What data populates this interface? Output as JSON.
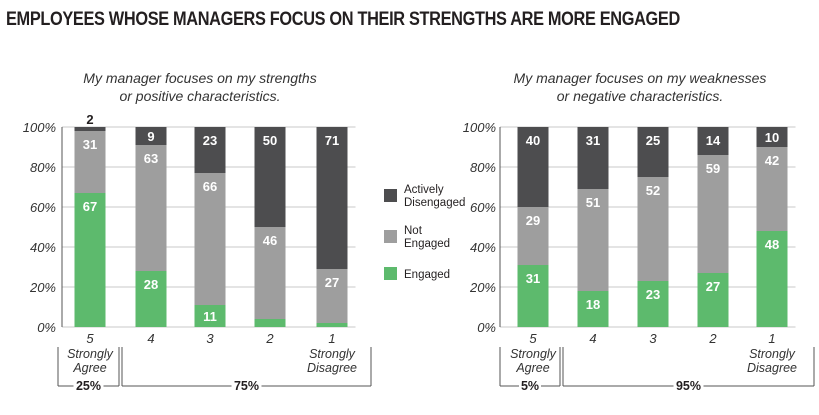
{
  "title": "EMPLOYEES WHOSE MANAGERS FOCUS ON THEIR STRENGTHS ARE MORE ENGAGED",
  "colors": {
    "actively_disengaged": "#4d4d4f",
    "not_engaged": "#9e9e9e",
    "engaged": "#5dba6d",
    "grid": "#c8c8c8",
    "axis": "#555555"
  },
  "legend": [
    {
      "key": "actively_disengaged",
      "label": [
        "Actively",
        "Disengaged"
      ]
    },
    {
      "key": "not_engaged",
      "label": [
        "Not",
        "Engaged"
      ]
    },
    {
      "key": "engaged",
      "label": [
        "Engaged"
      ]
    }
  ],
  "chart_data": [
    {
      "type": "bar",
      "stacked": true,
      "title": [
        "My manager focuses on my strengths",
        "or positive characteristics."
      ],
      "y_ticks": [
        "100%",
        "80%",
        "60%",
        "40%",
        "20%",
        "0%"
      ],
      "ylim": [
        0,
        100
      ],
      "categories": [
        "5",
        "4",
        "3",
        "2",
        "1"
      ],
      "category_notes": {
        "first": [
          "Strongly",
          "Agree"
        ],
        "last": [
          "Strongly",
          "Disagree"
        ]
      },
      "group_totals": {
        "first": "25%",
        "rest": "75%"
      },
      "series": [
        {
          "name": "Engaged",
          "key": "engaged",
          "values": [
            67,
            28,
            11,
            4,
            2
          ],
          "labels": [
            "67",
            "28",
            "11",
            "",
            ""
          ]
        },
        {
          "name": "Not Engaged",
          "key": "not_engaged",
          "values": [
            31,
            63,
            66,
            46,
            27
          ],
          "labels": [
            "31",
            "63",
            "66",
            "46",
            "27"
          ]
        },
        {
          "name": "Actively Disengaged",
          "key": "actively_disengaged",
          "values": [
            2,
            9,
            23,
            50,
            71
          ],
          "labels": [
            "2",
            "9",
            "23",
            "50",
            "71"
          ]
        }
      ]
    },
    {
      "type": "bar",
      "stacked": true,
      "title": [
        "My manager focuses on my weaknesses",
        "or negative characteristics."
      ],
      "y_ticks": [
        "100%",
        "80%",
        "60%",
        "40%",
        "20%",
        "0%"
      ],
      "ylim": [
        0,
        100
      ],
      "categories": [
        "5",
        "4",
        "3",
        "2",
        "1"
      ],
      "category_notes": {
        "first": [
          "Strongly",
          "Agree"
        ],
        "last": [
          "Strongly",
          "Disagree"
        ]
      },
      "group_totals": {
        "first": "5%",
        "rest": "95%"
      },
      "series": [
        {
          "name": "Engaged",
          "key": "engaged",
          "values": [
            31,
            18,
            23,
            27,
            48
          ],
          "labels": [
            "31",
            "18",
            "23",
            "27",
            "48"
          ]
        },
        {
          "name": "Not Engaged",
          "key": "not_engaged",
          "values": [
            29,
            51,
            52,
            59,
            42
          ],
          "labels": [
            "29",
            "51",
            "52",
            "59",
            "42"
          ]
        },
        {
          "name": "Actively Disengaged",
          "key": "actively_disengaged",
          "values": [
            40,
            31,
            25,
            14,
            10
          ],
          "labels": [
            "40",
            "31",
            "25",
            "14",
            "10"
          ]
        }
      ]
    }
  ]
}
